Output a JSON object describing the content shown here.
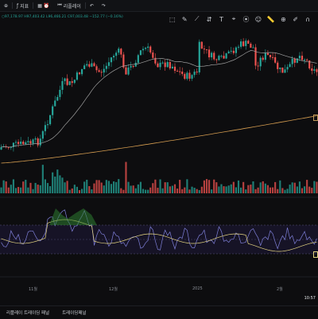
{
  "toolbar": {
    "items": [
      {
        "label": "",
        "icon": "currency-icon"
      },
      {
        "label": "지표",
        "icon": "indicator-icon"
      },
      {
        "label": "리플레이",
        "icon": "replay-icon"
      },
      {
        "label": "",
        "icon": "undo-icon"
      },
      {
        "label": "",
        "icon": "redo-icon"
      }
    ]
  },
  "ohlc_text": "○97,178.97 H97,403.42 L96,466.21 C97,003.48 −152.77 (−0.16%)",
  "drawbar": {
    "icons": [
      "select-box-icon",
      "pencil-icon",
      "ray-icon",
      "measure-icon",
      "text-icon",
      "shapes-icon",
      "fib-icon",
      "emoji-icon",
      "ruler-icon",
      "zoom-icon",
      "pen-icon",
      "magnet-icon",
      "lock-icon"
    ]
  },
  "xaxis": {
    "labels": [
      "11월",
      "12월",
      "2025",
      "2월"
    ]
  },
  "clock": "10:57",
  "footer": {
    "tabs": [
      "리플레이 트레이딩 패널",
      "트레이딩패널"
    ]
  },
  "colors": {
    "up": "#26a69a",
    "down": "#ef5350",
    "ma_fast": "#9e9e9e",
    "ma_slow": "#d39b4f",
    "rsi_line": "#7e7fd8",
    "rsi_ma": "#e5d580",
    "rsi_band": "#1f1a3a"
  }
}
